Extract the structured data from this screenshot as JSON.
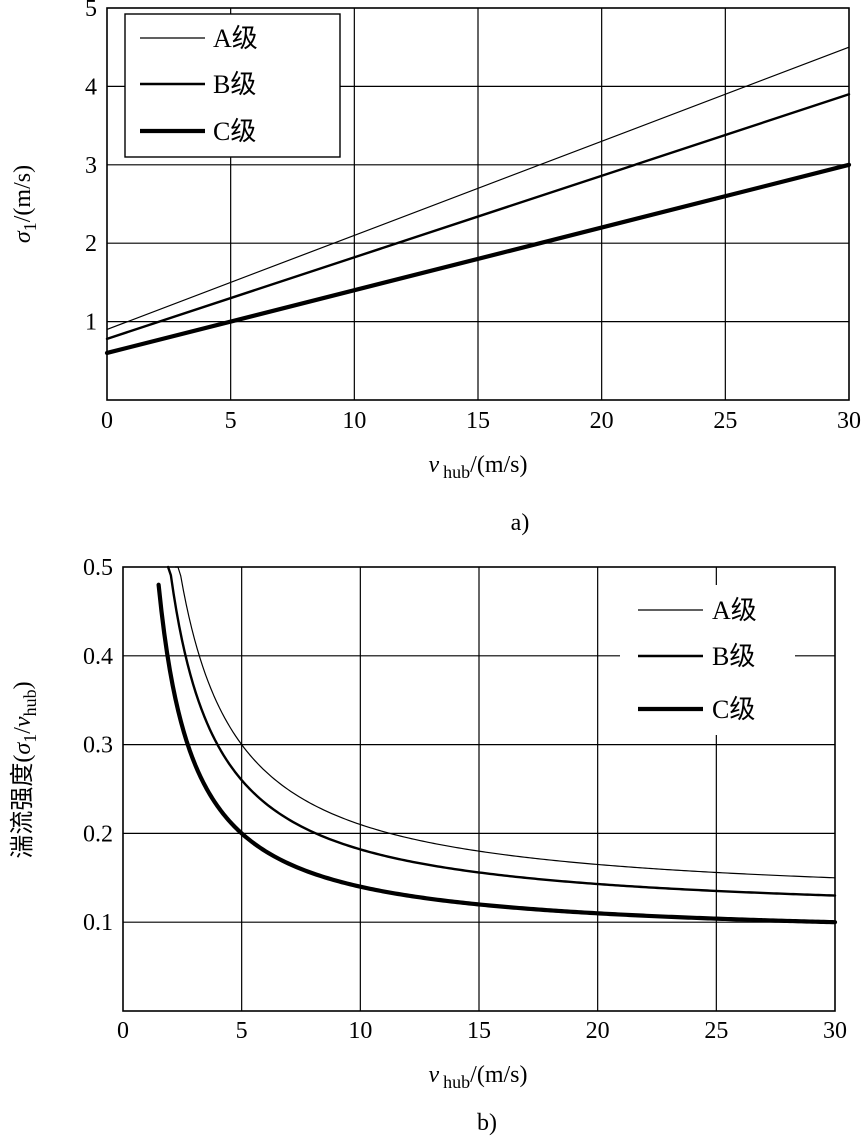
{
  "chart_data": [
    {
      "id": "a",
      "type": "line",
      "caption": "a)",
      "xlim": [
        0,
        30
      ],
      "ylim": [
        0,
        5
      ],
      "xticks": [
        0,
        5,
        10,
        15,
        20,
        25,
        30
      ],
      "yticks": [
        1,
        2,
        3,
        4,
        5
      ],
      "xtick_labels": [
        "0",
        "5",
        "10",
        "15",
        "20",
        "25",
        "30"
      ],
      "ytick_labels": [
        "1",
        "2",
        "3",
        "4",
        "5"
      ],
      "xlabel": {
        "symbol": "v",
        "sub": "hub",
        "unit": "/(m/s)"
      },
      "ylabel": {
        "symbol": "σ",
        "sub": "1",
        "unit": "/(m/s)"
      },
      "legend_position": "top-left",
      "series": [
        {
          "name": "A级",
          "x": [
            0,
            30
          ],
          "y": [
            0.9,
            4.5
          ],
          "weight": "thin"
        },
        {
          "name": "B级",
          "x": [
            0,
            30
          ],
          "y": [
            0.78,
            3.9
          ],
          "weight": "medium"
        },
        {
          "name": "C级",
          "x": [
            0,
            30
          ],
          "y": [
            0.6,
            3.0
          ],
          "weight": "thick"
        }
      ]
    },
    {
      "id": "b",
      "type": "line",
      "caption": "b)",
      "xlim": [
        0,
        30
      ],
      "ylim": [
        0,
        0.5
      ],
      "xticks": [
        0,
        5,
        10,
        15,
        20,
        25,
        30
      ],
      "yticks": [
        0.1,
        0.2,
        0.3,
        0.4,
        0.5
      ],
      "xtick_labels": [
        "0",
        "5",
        "10",
        "15",
        "20",
        "25",
        "30"
      ],
      "ytick_labels": [
        "0.1",
        "0.2",
        "0.3",
        "0.4",
        "0.5"
      ],
      "xlabel": {
        "symbol": "v",
        "sub": "hub",
        "unit": "/(m/s)"
      },
      "ylabel": {
        "prefix": "湍流强度(",
        "symbol": "σ",
        "sub": "1",
        "slash": "/",
        "symbol2": "v",
        "sub2": "hub",
        "suffix": ")"
      },
      "legend_position": "top-right",
      "series": [
        {
          "name": "A级",
          "a": 0.9,
          "b": 0.12,
          "x_start": 2.2,
          "x_end": 30,
          "weight": "thin"
        },
        {
          "name": "B级",
          "a": 0.78,
          "b": 0.104,
          "x_start": 1.9,
          "x_end": 30,
          "weight": "medium"
        },
        {
          "name": "C级",
          "a": 0.6,
          "b": 0.08,
          "x_start": 1.5,
          "x_end": 30,
          "weight": "thick"
        }
      ]
    }
  ]
}
